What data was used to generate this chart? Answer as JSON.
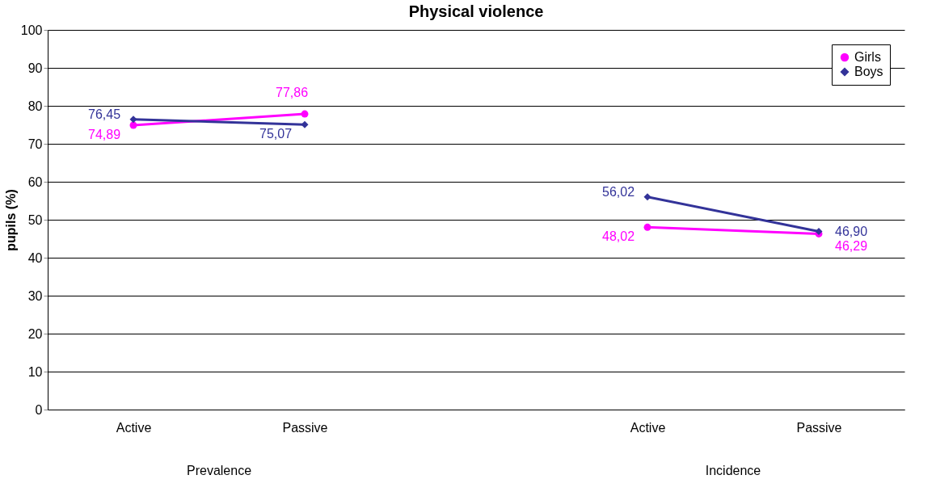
{
  "chart_data": {
    "type": "line",
    "title": "Physical violence",
    "ylabel": "pupils (%)",
    "categories": [
      "Active",
      "Passive",
      null,
      "Active",
      "Passive"
    ],
    "annotations": [
      "Prevalence",
      "Incidence"
    ],
    "series": [
      {
        "name": "Girls",
        "color": "#ff00ff",
        "marker": "circle",
        "values": [
          74.89,
          77.86,
          null,
          48.02,
          46.29
        ],
        "value_labels": [
          "74,89",
          "77,86",
          null,
          "48,02",
          "46,29"
        ]
      },
      {
        "name": "Boys",
        "color": "#333399",
        "marker": "diamond",
        "values": [
          76.45,
          75.07,
          null,
          56.02,
          46.9
        ],
        "value_labels": [
          "76,45",
          "75,07",
          null,
          "56,02",
          "46,90"
        ]
      }
    ],
    "ylim": [
      0,
      100
    ],
    "yticks": [
      0,
      10,
      20,
      30,
      40,
      50,
      60,
      70,
      80,
      90,
      100
    ],
    "grid": "y",
    "legend": "top right",
    "line_style": "solid"
  }
}
